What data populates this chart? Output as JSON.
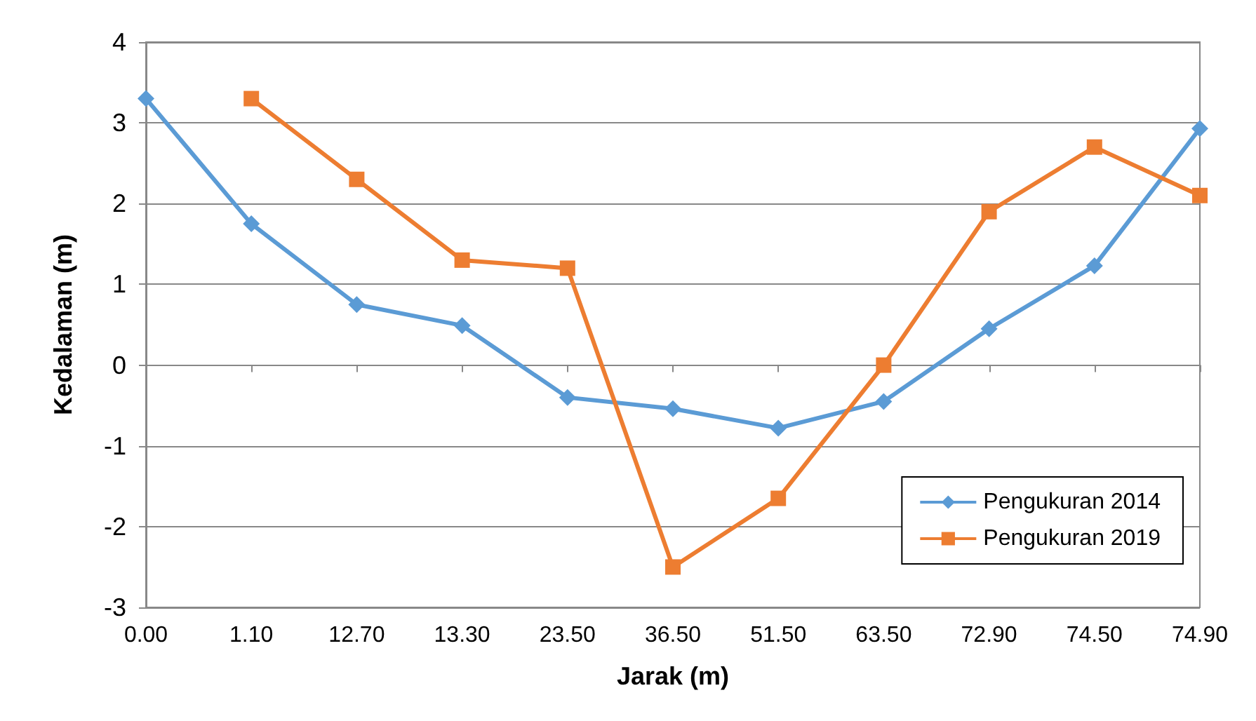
{
  "chart_data": {
    "type": "line",
    "xlabel": "Jarak (m)",
    "ylabel": "Kedalaman (m)",
    "categories": [
      "0.00",
      "1.10",
      "12.70",
      "13.30",
      "23.50",
      "36.50",
      "51.50",
      "63.50",
      "72.90",
      "74.50",
      "74.90"
    ],
    "series": [
      {
        "name": "Pengukuran 2014",
        "color": "#5b9bd5",
        "marker": "diamond",
        "values": [
          3.3,
          1.75,
          0.75,
          0.49,
          -0.4,
          -0.54,
          -0.78,
          -0.45,
          0.45,
          1.23,
          2.93
        ]
      },
      {
        "name": "Pengukuran 2019",
        "color": "#ed7d31",
        "marker": "square",
        "values": [
          null,
          3.3,
          2.3,
          1.3,
          1.2,
          -2.5,
          -1.65,
          0,
          1.9,
          2.7,
          2.1
        ]
      }
    ],
    "ylim": [
      -3,
      4
    ],
    "yticks": [
      -3,
      -2,
      -1,
      0,
      1,
      2,
      3,
      4
    ],
    "grid": "y",
    "legend": "bottom right",
    "line_style": "solid"
  }
}
